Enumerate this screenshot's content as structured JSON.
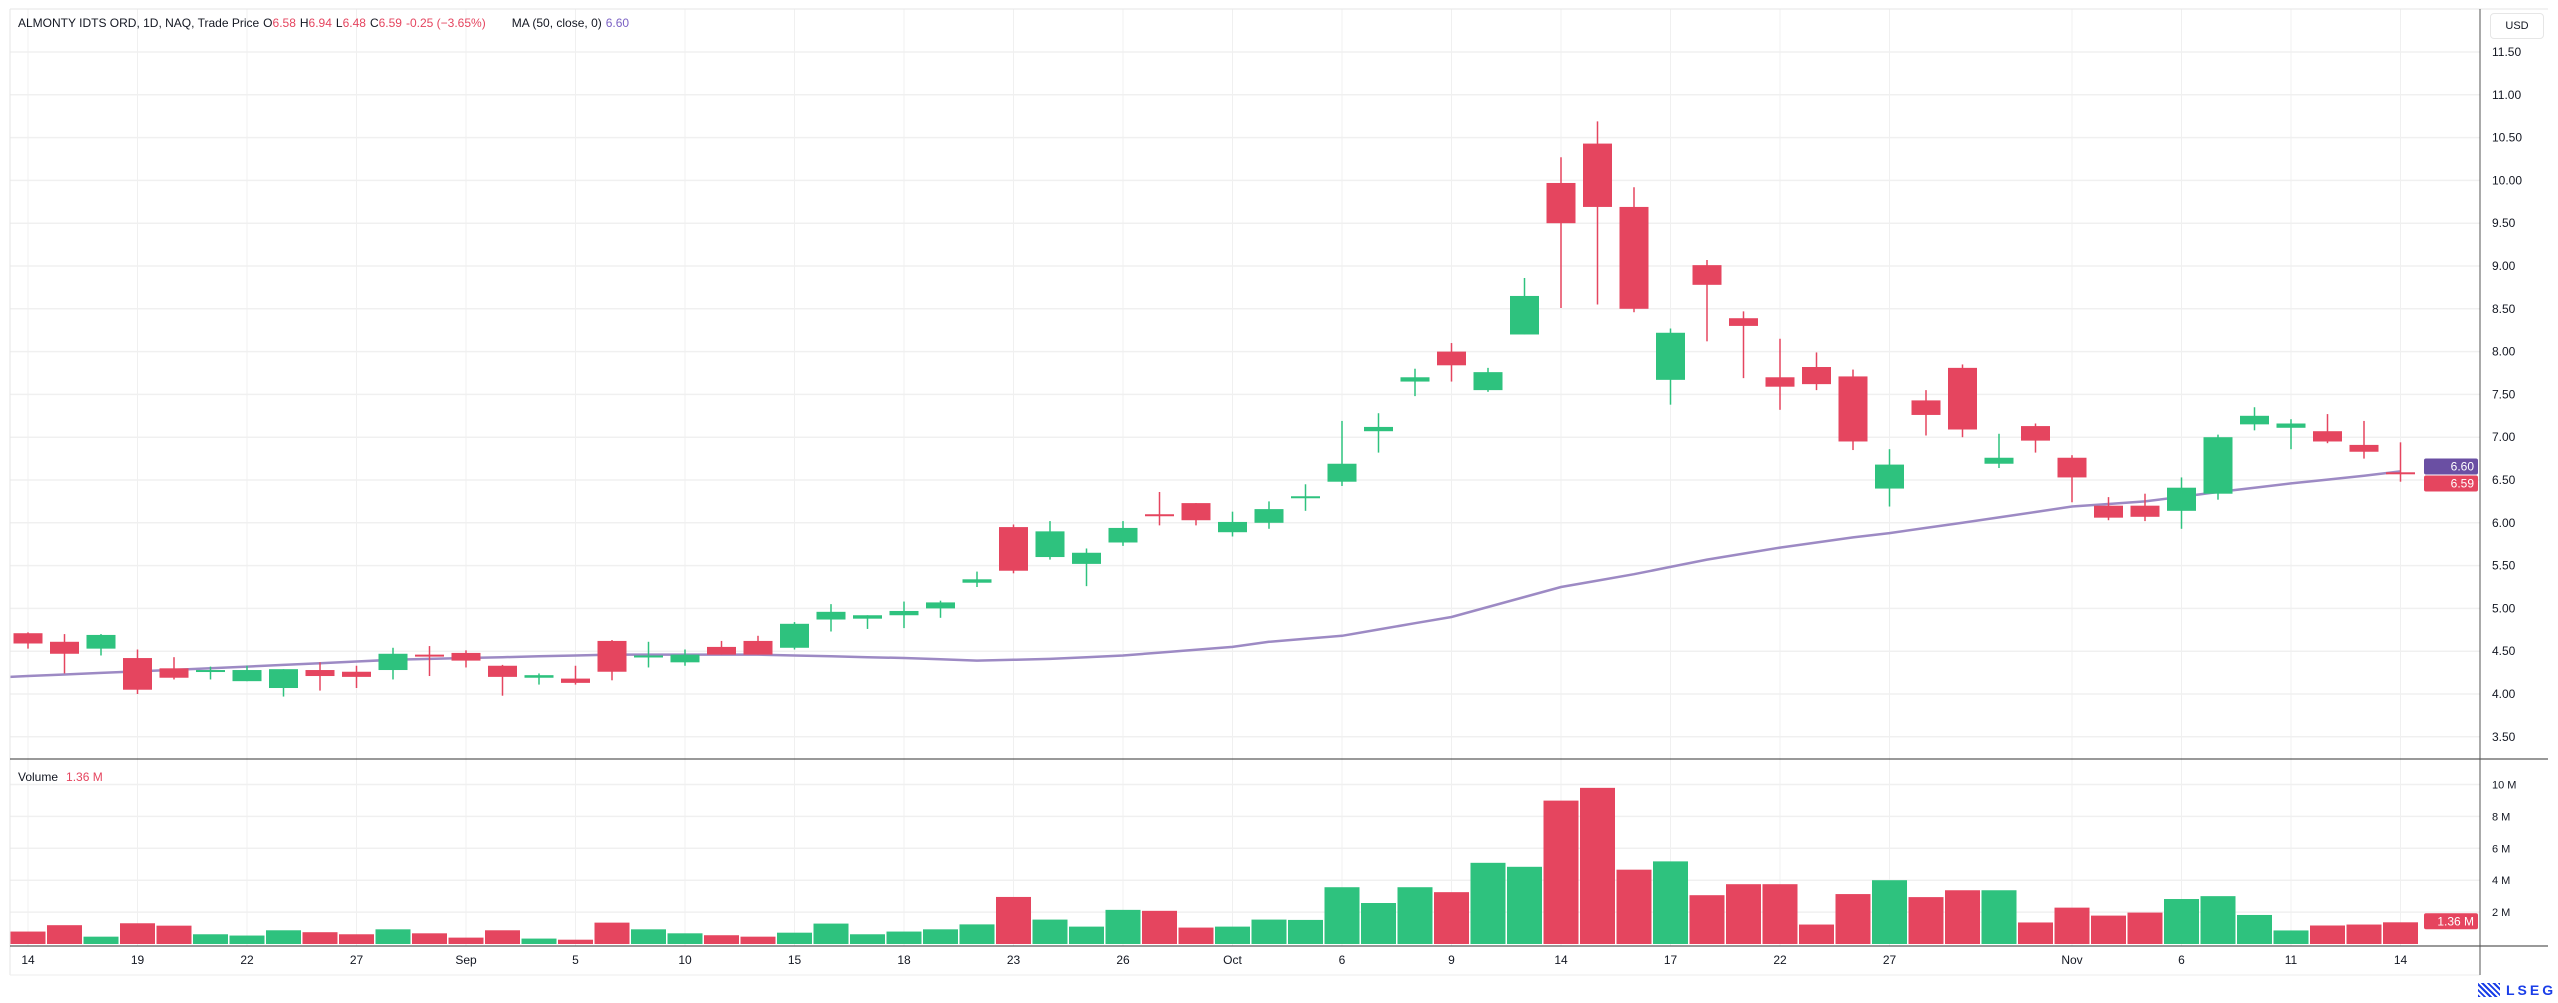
{
  "header": {
    "title": "ALMONTY IDTS ORD, 1D, NAQ, Trade Price",
    "open_label": "O",
    "open": "6.58",
    "high_label": "H",
    "high": "6.94",
    "low_label": "L",
    "low": "6.48",
    "close_label": "C",
    "close": "6.59",
    "change": "-0.25 (−3.65%)",
    "ma_label": "MA (50, close, 0)",
    "ma_value": "6.60"
  },
  "volume_legend": {
    "label": "Volume",
    "value": "1.36 M"
  },
  "currency": "USD",
  "logo_text": "LSEG",
  "colors": {
    "up": "#2ec27e",
    "down": "#e5455f",
    "ma": "#9d8ac4",
    "ma_badge": "#6a4fa3"
  },
  "chart_data": {
    "type": "candlestick",
    "title": "ALMONTY IDTS ORD, 1D, NAQ, Trade Price",
    "ylim": [
      3.25,
      11.6
    ],
    "price_ticks": [
      "11.50",
      "11.00",
      "10.50",
      "10.00",
      "9.50",
      "9.00",
      "8.50",
      "8.00",
      "7.50",
      "7.00",
      "6.50",
      "6.00",
      "5.50",
      "5.00",
      "4.50",
      "4.00",
      "3.50"
    ],
    "volume_ticks": [
      {
        "v": 10,
        "label": "10 M"
      },
      {
        "v": 8,
        "label": "8 M"
      },
      {
        "v": 6,
        "label": "6 M"
      },
      {
        "v": 4,
        "label": "4 M"
      },
      {
        "v": 2,
        "label": "2 M"
      }
    ],
    "x_ticks": [
      {
        "bar": 0,
        "label": "14"
      },
      {
        "bar": 3,
        "label": "19"
      },
      {
        "bar": 6,
        "label": "22"
      },
      {
        "bar": 9,
        "label": "27"
      },
      {
        "bar": 12,
        "label": "Sep"
      },
      {
        "bar": 15,
        "label": "5"
      },
      {
        "bar": 18,
        "label": "10"
      },
      {
        "bar": 21,
        "label": "15"
      },
      {
        "bar": 24,
        "label": "18"
      },
      {
        "bar": 27,
        "label": "23"
      },
      {
        "bar": 30,
        "label": "26"
      },
      {
        "bar": 33,
        "label": "Oct"
      },
      {
        "bar": 36,
        "label": "6"
      },
      {
        "bar": 39,
        "label": "9"
      },
      {
        "bar": 42,
        "label": "14"
      },
      {
        "bar": 45,
        "label": "17"
      },
      {
        "bar": 48,
        "label": "22"
      },
      {
        "bar": 51,
        "label": "27"
      },
      {
        "bar": 56,
        "label": "Nov"
      },
      {
        "bar": 59,
        "label": "6"
      },
      {
        "bar": 62,
        "label": "11"
      },
      {
        "bar": 65,
        "label": "14"
      }
    ],
    "ohlc": [
      [
        4.71,
        4.72,
        4.53,
        4.59
      ],
      [
        4.61,
        4.7,
        4.24,
        4.47
      ],
      [
        4.53,
        4.7,
        4.45,
        4.69
      ],
      [
        4.42,
        4.52,
        4.0,
        4.05
      ],
      [
        4.19,
        4.43,
        4.17,
        4.3
      ],
      [
        4.27,
        4.32,
        4.17,
        4.28
      ],
      [
        4.15,
        4.33,
        4.15,
        4.28
      ],
      [
        4.07,
        4.29,
        3.97,
        4.29
      ],
      [
        4.28,
        4.37,
        4.04,
        4.21
      ],
      [
        4.26,
        4.33,
        4.07,
        4.2
      ],
      [
        4.28,
        4.54,
        4.17,
        4.47
      ],
      [
        4.46,
        4.56,
        4.21,
        4.45
      ],
      [
        4.48,
        4.51,
        4.31,
        4.39
      ],
      [
        4.33,
        4.34,
        3.98,
        4.2
      ],
      [
        4.19,
        4.24,
        4.11,
        4.22
      ],
      [
        4.18,
        4.33,
        4.11,
        4.13
      ],
      [
        4.26,
        4.63,
        4.16,
        4.62
      ],
      [
        4.45,
        4.61,
        4.31,
        4.44
      ],
      [
        4.37,
        4.52,
        4.33,
        4.46
      ],
      [
        4.46,
        4.62,
        4.46,
        4.55
      ],
      [
        4.62,
        4.68,
        4.46,
        4.46
      ],
      [
        4.54,
        4.84,
        4.52,
        4.82
      ],
      [
        4.87,
        5.05,
        4.73,
        4.96
      ],
      [
        4.88,
        4.92,
        4.76,
        4.92
      ],
      [
        4.92,
        5.08,
        4.77,
        4.97
      ],
      [
        5.0,
        5.09,
        4.89,
        5.07
      ],
      [
        5.3,
        5.43,
        5.25,
        5.34
      ],
      [
        5.44,
        5.98,
        5.41,
        5.95
      ],
      [
        5.9,
        6.02,
        5.57,
        5.6
      ],
      [
        5.52,
        5.7,
        5.26,
        5.65
      ],
      [
        5.77,
        6.02,
        5.73,
        5.94
      ],
      [
        6.09,
        6.36,
        5.97,
        6.1
      ],
      [
        6.23,
        6.23,
        5.97,
        6.03
      ],
      [
        6.01,
        6.13,
        5.84,
        5.89
      ],
      [
        6.0,
        6.25,
        5.93,
        6.16
      ],
      [
        6.3,
        6.45,
        6.14,
        6.31
      ],
      [
        6.48,
        7.19,
        6.43,
        6.69
      ],
      [
        7.07,
        7.28,
        6.82,
        7.12
      ],
      [
        7.65,
        7.8,
        7.48,
        7.7
      ],
      [
        7.84,
        8.1,
        7.65,
        8.0
      ],
      [
        7.76,
        7.81,
        7.53,
        7.55
      ],
      [
        8.2,
        8.86,
        8.2,
        8.65
      ],
      [
        9.5,
        10.27,
        8.51,
        9.97
      ],
      [
        10.43,
        10.69,
        8.55,
        9.69
      ],
      [
        9.69,
        9.92,
        8.46,
        8.5
      ],
      [
        8.22,
        8.27,
        7.38,
        7.67
      ],
      [
        8.78,
        9.07,
        8.12,
        9.01
      ],
      [
        8.39,
        8.47,
        7.69,
        8.3
      ],
      [
        7.7,
        8.15,
        7.32,
        7.59
      ],
      [
        7.82,
        7.99,
        7.55,
        7.62
      ],
      [
        7.71,
        7.79,
        6.85,
        6.95
      ],
      [
        6.68,
        6.86,
        6.19,
        6.4
      ],
      [
        7.26,
        7.55,
        7.02,
        7.43
      ],
      [
        7.81,
        7.85,
        7.0,
        7.09
      ],
      [
        6.76,
        7.04,
        6.64,
        6.69
      ],
      [
        6.96,
        7.16,
        6.82,
        7.13
      ],
      [
        6.76,
        6.79,
        6.24,
        6.53
      ],
      [
        6.2,
        6.3,
        6.03,
        6.06
      ],
      [
        6.2,
        6.34,
        6.02,
        6.07
      ],
      [
        6.14,
        6.53,
        5.93,
        6.41
      ],
      [
        6.34,
        7.03,
        6.27,
        7.0
      ],
      [
        7.15,
        7.35,
        7.08,
        7.25
      ],
      [
        7.11,
        7.21,
        6.86,
        7.16
      ],
      [
        7.07,
        7.27,
        6.93,
        6.95
      ],
      [
        6.91,
        7.19,
        6.75,
        6.83
      ],
      [
        6.58,
        6.94,
        6.48,
        6.59
      ]
    ],
    "direction": "ddudduuuddudddudduudduuuuuuduuudduuuuuuduuddduddddduddudddduuuuddd",
    "volume_millions": [
      0.78,
      1.18,
      0.46,
      1.3,
      1.15,
      0.61,
      0.53,
      0.86,
      0.74,
      0.61,
      0.92,
      0.67,
      0.4,
      0.86,
      0.34,
      0.27,
      1.34,
      0.92,
      0.67,
      0.55,
      0.46,
      0.71,
      1.28,
      0.61,
      0.78,
      0.92,
      1.23,
      2.95,
      1.53,
      1.09,
      2.14,
      2.08,
      1.03,
      1.09,
      1.53,
      1.51,
      3.56,
      2.57,
      3.56,
      3.25,
      5.09,
      4.84,
      8.99,
      9.79,
      4.66,
      5.18,
      3.06,
      3.75,
      3.75,
      1.22,
      3.13,
      4.0,
      2.94,
      3.37,
      3.37,
      1.35,
      2.28,
      1.78,
      1.97,
      2.82,
      3.0,
      1.82,
      0.85,
      1.16,
      1.22,
      1.36
    ],
    "ma50_points": [
      [
        0,
        4.21
      ],
      [
        5,
        4.3
      ],
      [
        10,
        4.4
      ],
      [
        16,
        4.46
      ],
      [
        20,
        4.46
      ],
      [
        24,
        4.42
      ],
      [
        26,
        4.39
      ],
      [
        28,
        4.41
      ],
      [
        30,
        4.45
      ],
      [
        33,
        4.55
      ],
      [
        34,
        4.61
      ],
      [
        36,
        4.68
      ],
      [
        39,
        4.9
      ],
      [
        42,
        5.25
      ],
      [
        44,
        5.4
      ],
      [
        46,
        5.57
      ],
      [
        48,
        5.71
      ],
      [
        50,
        5.83
      ],
      [
        51,
        5.88
      ],
      [
        53,
        6.0
      ],
      [
        56,
        6.19
      ],
      [
        58,
        6.25
      ],
      [
        60,
        6.36
      ],
      [
        62,
        6.46
      ],
      [
        64,
        6.55
      ],
      [
        65,
        6.6
      ]
    ],
    "last_badges": {
      "ma": "6.60",
      "close": "6.59",
      "volume": "1.36 M"
    }
  }
}
